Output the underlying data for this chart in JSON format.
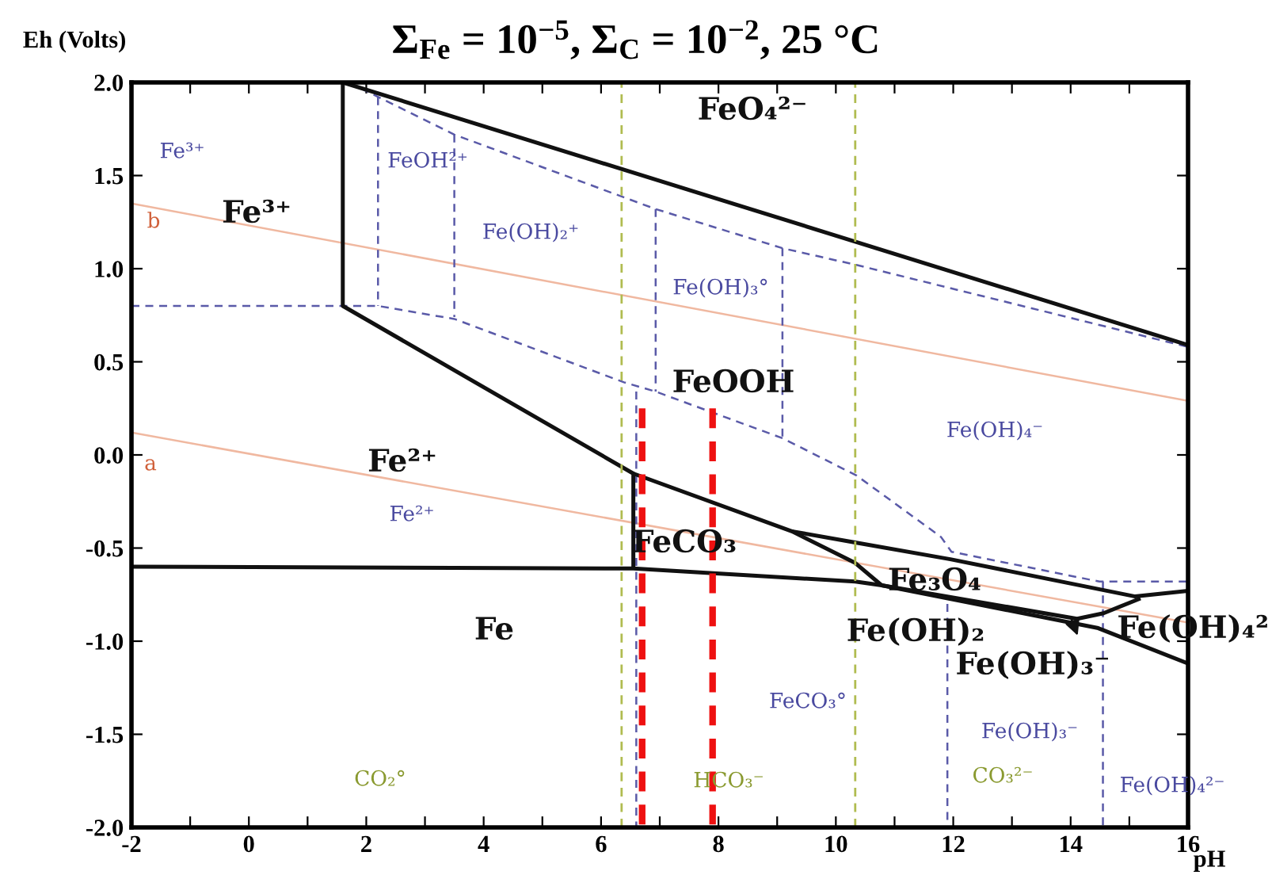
{
  "chart_data": {
    "type": "line",
    "title": "Σ$_{Fe}$ = 10$^{−5}$, Σ$_{C}$ = 10$^{−2}$, 25 °C",
    "xlabel": "pH",
    "ylabel": "Eh (Volts)",
    "xlim": [
      -2,
      16
    ],
    "ylim": [
      -2,
      2
    ],
    "xticks": [
      -2,
      {
        "value": -1,
        "label": null
      },
      0,
      {
        "value": 1,
        "label": null
      },
      2,
      {
        "value": 3,
        "label": null
      },
      4,
      {
        "value": 5,
        "label": null
      },
      6,
      {
        "value": 7,
        "label": null
      },
      8,
      {
        "value": 9,
        "label": null
      },
      10,
      {
        "value": 11,
        "label": null
      },
      12,
      {
        "value": 13,
        "label": null
      },
      14,
      {
        "value": 15,
        "label": null
      },
      16
    ],
    "yticks": [
      {
        "value": -2,
        "label": "-2.0"
      },
      {
        "value": -1.5,
        "label": "-1.5"
      },
      {
        "value": -1,
        "label": "-1.0"
      },
      {
        "value": -0.5,
        "label": "-0.5"
      },
      {
        "value": 0,
        "label": "0.0"
      },
      {
        "value": 0.5,
        "label": "0.5"
      },
      {
        "value": 1,
        "label": "1.0"
      },
      {
        "value": 1.5,
        "label": "1.5"
      },
      {
        "value": 2,
        "label": "2.0"
      }
    ],
    "grid": false,
    "legend": false,
    "marker": "none",
    "series": [
      {
        "color": "#f0b8a0",
        "line_style": "solid",
        "x": [
          -2,
          16
        ],
        "values": [
          1.35,
          0.29
        ]
      },
      {
        "color": "#f0b8a0",
        "line_style": "solid",
        "x": [
          -2,
          16
        ],
        "values": [
          0.12,
          -0.9
        ]
      },
      {
        "color": "#5a5aa8",
        "line_style": "dashed",
        "x": [
          -2,
          1.6,
          2.2,
          3.5,
          6.39,
          6.93,
          9.09,
          10.35,
          11.79,
          11.97,
          14.49,
          16
        ],
        "values": [
          0.8,
          0.8,
          0.8,
          0.73,
          0.39,
          0.34,
          0.09,
          -0.11,
          -0.44,
          -0.52,
          -0.68,
          -0.68
        ]
      },
      {
        "color": "#5a5aa8",
        "line_style": "dashed",
        "x": [
          1.7,
          3.5,
          6.93,
          9.09,
          10.35,
          16
        ],
        "values": [
          2.0,
          1.72,
          1.32,
          1.11,
          1.02,
          0.58
        ]
      },
      {
        "color": "#5a5aa8",
        "line_style": "dashed",
        "x": [
          2.2,
          2.2
        ],
        "values": [
          1.92,
          0.8
        ]
      },
      {
        "color": "#5a5aa8",
        "line_style": "dashed",
        "x": [
          3.5,
          3.5
        ],
        "values": [
          1.72,
          0.74
        ]
      },
      {
        "color": "#5a5aa8",
        "line_style": "dashed",
        "x": [
          6.93,
          6.93
        ],
        "values": [
          1.32,
          0.34
        ]
      },
      {
        "color": "#5a5aa8",
        "line_style": "dashed",
        "x": [
          9.09,
          9.09
        ],
        "values": [
          1.11,
          0.09
        ]
      },
      {
        "color": "#5a5aa8",
        "line_style": "dashed",
        "x": [
          6.6,
          6.6
        ],
        "values": [
          0.34,
          -2.0
        ]
      },
      {
        "color": "#5a5aa8",
        "line_style": "dashed",
        "x": [
          11.9,
          11.9
        ],
        "values": [
          -0.8,
          -2.0
        ]
      },
      {
        "color": "#5a5aa8",
        "line_style": "dashed",
        "x": [
          14.55,
          14.55
        ],
        "values": [
          -0.68,
          -2.0
        ]
      },
      {
        "color": "#111111",
        "line_style": "solid",
        "x": [
          1.6,
          1.6,
          6.55,
          6.55
        ],
        "values": [
          2.0,
          0.8,
          -0.1,
          -0.61
        ]
      },
      {
        "color": "#111111",
        "line_style": "solid",
        "x": [
          1.6,
          16
        ],
        "values": [
          2.0,
          0.59
        ]
      },
      {
        "color": "#111111",
        "line_style": "solid",
        "x": [
          -2,
          6.55,
          10.33,
          10.78,
          14.47,
          16
        ],
        "values": [
          -0.6,
          -0.61,
          -0.68,
          -0.7,
          -0.93,
          -1.12
        ]
      },
      {
        "color": "#111111",
        "line_style": "solid",
        "x": [
          6.55,
          9.25,
          10.33,
          10.78
        ],
        "values": [
          -0.1,
          -0.41,
          -0.58,
          -0.7
        ]
      },
      {
        "color": "#111111",
        "line_style": "solid",
        "x": [
          9.25,
          10.33,
          11.95,
          15.1,
          16
        ],
        "values": [
          -0.41,
          -0.47,
          -0.56,
          -0.76,
          -0.73
        ]
      },
      {
        "color": "#111111",
        "line_style": "solid",
        "x": [
          10.78,
          14.11,
          14.56,
          15.19
        ],
        "values": [
          -0.7,
          -0.88,
          -0.85,
          -0.77
        ]
      },
      {
        "color": "#ee1111",
        "line_style": "dashed",
        "x": [
          6.7,
          6.7
        ],
        "values": [
          0.25,
          -2.0
        ]
      },
      {
        "color": "#ee1111",
        "line_style": "dashed",
        "x": [
          7.9,
          7.9
        ],
        "values": [
          0.25,
          -2.0
        ]
      }
    ],
    "ref_lines": [
      {
        "axis": "x",
        "value": 6.35,
        "label": null,
        "color": "#b0bc50",
        "line_style": "dashed"
      },
      {
        "axis": "x",
        "value": 10.33,
        "label": null,
        "color": "#b0bc50",
        "line_style": "dashed"
      }
    ],
    "annotations": [
      "b",
      "a",
      "Fe³⁺",
      "FeO₄²⁻",
      "FeOOH",
      "Fe²⁺",
      "FeCO₃",
      "Fe₃O₄",
      "Fe",
      "Fe(OH)₂",
      "Fe(OH)₃⁻",
      "Fe(OH)₄²",
      "Fe³⁺",
      "FeOH²⁺",
      "Fe(OH)₂⁺",
      "Fe(OH)₃°",
      "Fe(OH)₄⁻",
      "Fe²⁺",
      "FeCO₃°",
      "Fe(OH)₃⁻",
      "Fe(OH)₄²⁻",
      "CO₂°",
      "HCO₃⁻",
      "CO₃²⁻"
    ]
  }
}
